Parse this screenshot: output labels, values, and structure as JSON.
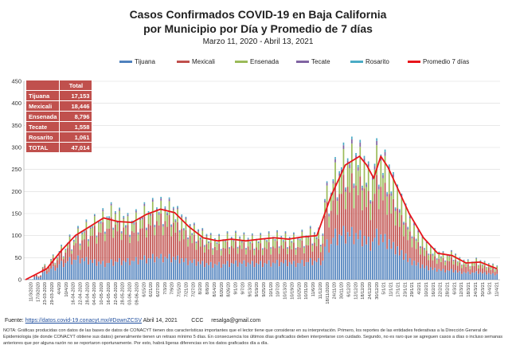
{
  "title_line1": "Casos Confirmados COVID-19 en Baja California",
  "title_line2": "por Municipio por Día y Promedio de 7 días",
  "subtitle": "Marzo 11, 2020  - Abril 13, 2021",
  "legend": [
    {
      "label": "Tijuana",
      "color": "#4f81bd"
    },
    {
      "label": "Mexicali",
      "color": "#c0504d"
    },
    {
      "label": "Ensenada",
      "color": "#9bbb59"
    },
    {
      "label": "Tecate",
      "color": "#8064a2"
    },
    {
      "label": "Rosarito",
      "color": "#4bacc6"
    },
    {
      "label": "Promedio 7 días",
      "color": "#e8151b"
    }
  ],
  "totals": {
    "header": "Total",
    "rows": [
      {
        "label": "Tijuana",
        "value": "17,153"
      },
      {
        "label": "Mexicali",
        "value": "18,446"
      },
      {
        "label": "Ensenada",
        "value": "8,796"
      },
      {
        "label": "Tecate",
        "value": "1,558"
      },
      {
        "label": "Rosarito",
        "value": "1,061"
      },
      {
        "label": "TOTAL",
        "value": "47,014"
      }
    ]
  },
  "source_prefix": "Fuente:",
  "source_link": "https://datos.covid-19.conacyt.mx/#DownZCSV",
  "source_date": "Abril 14, 2021",
  "source_ccc": "CCC",
  "source_email": "resalga@gmail.com",
  "note": "NOTA: Gráficas producidas con datos de las bases de datos de CONACYT tienen dos características importantes que el lector tiene que considerar en su interpretación. Primero, los reportes de las entidades federativas a la Dirección General de Epidemiologia (de donde CONACYT obtiene sus datos) generalmente tienen un retraso mínimo 5 días. En consecuencia los últimos días graficados deben interpretarse con cuidado. Segundo, no es raro que se agreguen casos a días o incluso semanas anteriores que por alguna razón no se reportaron oportunamente. Por esto, habrá ligeras diferencias en los datos graficados día a día.",
  "chart_data": {
    "type": "bar",
    "stacked": true,
    "title": "Casos Confirmados COVID-19 en Baja California por Municipio por Día y Promedio de 7 días",
    "subtitle": "Marzo 11, 2020  - Abril 13, 2021",
    "ylim": [
      0,
      450
    ],
    "yticks": [
      0,
      50,
      100,
      150,
      200,
      250,
      300,
      350,
      400,
      450
    ],
    "grid": true,
    "legend_position": "top",
    "xtick_labels": [
      "11/3/2020",
      "17/3/2020",
      "23-03-2020",
      "29-03-2020",
      "4/4/20",
      "10/4/20",
      "16-04-2020",
      "22-04-2020",
      "28-04-2020",
      "04-05-2020",
      "10-05-2020",
      "16-05-2020",
      "22-05-2020",
      "28-05-2020",
      "03-06-2020",
      "09-06-2020",
      "6/15/20",
      "6/21/20",
      "6/27/20",
      "7/3/20",
      "7/9/20",
      "7/15/20",
      "7/21/20",
      "7/27/20",
      "8/2/20",
      "8/8/20",
      "8/14/20",
      "8/20/20",
      "8/26/20",
      "9/1/20",
      "9/7/20",
      "9/13/20",
      "9/19/20",
      "9/25/20",
      "10/1/20",
      "10/7/20",
      "10/13/20",
      "10/19/20",
      "10/25/20",
      "10/31/20",
      "11/6/20",
      "11/12/20",
      "18/11/2020",
      "24/11/20",
      "30/11/20",
      "6/12/20",
      "12/12/20",
      "18/12/20",
      "24/12/20",
      "30/12/20",
      "5/1/21",
      "11/1/21",
      "17/1/21",
      "23/1/21",
      "29/1/21",
      "4/2/21",
      "10/2/21",
      "16/2/21",
      "22/2/21",
      "28/2/21",
      "6/3/21",
      "12/3/21",
      "18/3/21",
      "24/3/21",
      "30/3/21",
      "5/4/21",
      "11/4/21"
    ],
    "series_names": [
      "Tijuana",
      "Mexicali",
      "Ensenada",
      "Tecate",
      "Rosarito"
    ],
    "series_colors": [
      "#4f81bd",
      "#c0504d",
      "#9bbb59",
      "#8064a2",
      "#4bacc6"
    ],
    "note": "Daily stacked values per municipality estimated by week from the figure",
    "weekly_stacked": [
      {
        "week_of": "11/3/2020",
        "values": [
          1,
          0,
          0,
          0,
          0
        ]
      },
      {
        "week_of": "18/3/2020",
        "values": [
          6,
          3,
          0,
          0,
          0
        ]
      },
      {
        "week_of": "25/3/2020",
        "values": [
          16,
          10,
          2,
          0,
          1
        ]
      },
      {
        "week_of": "1/4/2020",
        "values": [
          25,
          16,
          4,
          1,
          1
        ]
      },
      {
        "week_of": "8/4/2020",
        "values": [
          35,
          22,
          5,
          1,
          2
        ]
      },
      {
        "week_of": "15/4/2020",
        "values": [
          42,
          30,
          8,
          2,
          2
        ]
      },
      {
        "week_of": "22/4/2020",
        "values": [
          45,
          38,
          12,
          2,
          3
        ]
      },
      {
        "week_of": "29/4/2020",
        "values": [
          42,
          50,
          15,
          2,
          3
        ]
      },
      {
        "week_of": "6/5/2020",
        "values": [
          38,
          62,
          18,
          2,
          2
        ]
      },
      {
        "week_of": "13/5/2020",
        "values": [
          35,
          72,
          20,
          3,
          3
        ]
      },
      {
        "week_of": "20/5/2020",
        "values": [
          38,
          78,
          22,
          3,
          3
        ]
      },
      {
        "week_of": "27/5/2020",
        "values": [
          40,
          70,
          18,
          3,
          3
        ]
      },
      {
        "week_of": "3/6/2020",
        "values": [
          40,
          62,
          16,
          3,
          3
        ]
      },
      {
        "week_of": "10/6/2020",
        "values": [
          42,
          65,
          18,
          3,
          3
        ]
      },
      {
        "week_of": "17/6/2020",
        "values": [
          45,
          72,
          20,
          4,
          3
        ]
      },
      {
        "week_of": "24/6/2020",
        "values": [
          48,
          75,
          22,
          4,
          3
        ]
      },
      {
        "week_of": "1/7/2020",
        "values": [
          48,
          75,
          24,
          4,
          3
        ]
      },
      {
        "week_of": "8/7/2020",
        "values": [
          48,
          72,
          26,
          4,
          3
        ]
      },
      {
        "week_of": "15/7/2020",
        "values": [
          45,
          62,
          24,
          3,
          3
        ]
      },
      {
        "week_of": "22/7/2020",
        "values": [
          40,
          52,
          20,
          3,
          2
        ]
      },
      {
        "week_of": "29/7/2020",
        "values": [
          38,
          45,
          18,
          3,
          2
        ]
      },
      {
        "week_of": "5/8/2020",
        "values": [
          35,
          40,
          16,
          3,
          2
        ]
      },
      {
        "week_of": "12/8/2020",
        "values": [
          33,
          36,
          14,
          2,
          2
        ]
      },
      {
        "week_of": "19/8/2020",
        "values": [
          33,
          34,
          14,
          2,
          2
        ]
      },
      {
        "week_of": "26/8/2020",
        "values": [
          35,
          36,
          15,
          2,
          2
        ]
      },
      {
        "week_of": "2/9/2020",
        "values": [
          36,
          36,
          15,
          2,
          2
        ]
      },
      {
        "week_of": "9/9/2020",
        "values": [
          36,
          34,
          14,
          2,
          2
        ]
      },
      {
        "week_of": "16/9/2020",
        "values": [
          35,
          33,
          14,
          2,
          2
        ]
      },
      {
        "week_of": "23/9/2020",
        "values": [
          35,
          33,
          15,
          2,
          2
        ]
      },
      {
        "week_of": "30/9/2020",
        "values": [
          36,
          34,
          16,
          2,
          2
        ]
      },
      {
        "week_of": "7/10/2020",
        "values": [
          37,
          35,
          16,
          2,
          2
        ]
      },
      {
        "week_of": "14/10/2020",
        "values": [
          37,
          34,
          15,
          2,
          2
        ]
      },
      {
        "week_of": "21/10/2020",
        "values": [
          35,
          34,
          15,
          2,
          2
        ]
      },
      {
        "week_of": "28/10/2020",
        "values": [
          37,
          36,
          16,
          2,
          2
        ]
      },
      {
        "week_of": "4/11/2020",
        "values": [
          40,
          38,
          17,
          3,
          2
        ]
      },
      {
        "week_of": "11/11/2020",
        "values": [
          40,
          36,
          16,
          3,
          2
        ]
      },
      {
        "week_of": "18/11/2020",
        "values": [
          75,
          70,
          30,
          5,
          3
        ]
      },
      {
        "week_of": "25/11/2020",
        "values": [
          95,
          85,
          38,
          6,
          4
        ]
      },
      {
        "week_of": "2/12/2020",
        "values": [
          100,
          95,
          48,
          7,
          5
        ]
      },
      {
        "week_of": "9/12/2020",
        "values": [
          98,
          100,
          55,
          8,
          5
        ]
      },
      {
        "week_of": "16/12/2020",
        "values": [
          92,
          100,
          55,
          8,
          5
        ]
      },
      {
        "week_of": "23/12/2020",
        "values": [
          80,
          85,
          45,
          6,
          4
        ]
      },
      {
        "week_of": "30/12/2020",
        "values": [
          95,
          100,
          55,
          8,
          5
        ]
      },
      {
        "week_of": "6/1/2021",
        "values": [
          85,
          95,
          50,
          7,
          5
        ]
      },
      {
        "week_of": "13/1/2021",
        "values": [
          70,
          80,
          40,
          6,
          4
        ]
      },
      {
        "week_of": "20/1/2021",
        "values": [
          55,
          65,
          32,
          5,
          3
        ]
      },
      {
        "week_of": "27/1/2021",
        "values": [
          40,
          50,
          24,
          4,
          2
        ]
      },
      {
        "week_of": "3/2/2021",
        "values": [
          32,
          38,
          18,
          3,
          2
        ]
      },
      {
        "week_of": "10/2/2021",
        "values": [
          26,
          28,
          14,
          2,
          2
        ]
      },
      {
        "week_of": "17/2/2021",
        "values": [
          22,
          22,
          11,
          2,
          2
        ]
      },
      {
        "week_of": "24/2/2021",
        "values": [
          20,
          20,
          10,
          2,
          1
        ]
      },
      {
        "week_of": "3/3/2021",
        "values": [
          20,
          22,
          10,
          2,
          1
        ]
      },
      {
        "week_of": "10/3/2021",
        "values": [
          16,
          16,
          8,
          1,
          1
        ]
      },
      {
        "week_of": "17/3/2021",
        "values": [
          15,
          14,
          7,
          1,
          1
        ]
      },
      {
        "week_of": "24/3/2021",
        "values": [
          16,
          15,
          8,
          1,
          1
        ]
      },
      {
        "week_of": "31/3/2021",
        "values": [
          14,
          12,
          7,
          1,
          1
        ]
      },
      {
        "week_of": "7/4/2021",
        "values": [
          12,
          10,
          6,
          1,
          1
        ]
      }
    ],
    "moving_avg_7d": [
      {
        "date": "11/3/2020",
        "value": 0
      },
      {
        "date": "29/3/2020",
        "value": 25
      },
      {
        "date": "10/4/2020",
        "value": 65
      },
      {
        "date": "22/4/2020",
        "value": 100
      },
      {
        "date": "4/5/2020",
        "value": 120
      },
      {
        "date": "16/5/2020",
        "value": 140
      },
      {
        "date": "28/5/2020",
        "value": 132
      },
      {
        "date": "9/6/2020",
        "value": 130
      },
      {
        "date": "21/6/2020",
        "value": 148
      },
      {
        "date": "3/7/2020",
        "value": 160
      },
      {
        "date": "15/7/2020",
        "value": 152
      },
      {
        "date": "27/7/2020",
        "value": 120
      },
      {
        "date": "8/8/2020",
        "value": 95
      },
      {
        "date": "20/8/2020",
        "value": 88
      },
      {
        "date": "1/9/2020",
        "value": 92
      },
      {
        "date": "13/9/2020",
        "value": 88
      },
      {
        "date": "25/9/2020",
        "value": 92
      },
      {
        "date": "7/10/2020",
        "value": 95
      },
      {
        "date": "19/10/2020",
        "value": 92
      },
      {
        "date": "31/10/2020",
        "value": 97
      },
      {
        "date": "12/11/2020",
        "value": 100
      },
      {
        "date": "24/11/2020",
        "value": 190
      },
      {
        "date": "6/12/2020",
        "value": 260
      },
      {
        "date": "18/12/2020",
        "value": 280
      },
      {
        "date": "24/12/2020",
        "value": 260
      },
      {
        "date": "30/12/2020",
        "value": 230
      },
      {
        "date": "5/1/2021",
        "value": 280
      },
      {
        "date": "11/1/2021",
        "value": 255
      },
      {
        "date": "17/1/2021",
        "value": 220
      },
      {
        "date": "29/1/2021",
        "value": 150
      },
      {
        "date": "10/2/2021",
        "value": 95
      },
      {
        "date": "22/2/2021",
        "value": 60
      },
      {
        "date": "6/3/2021",
        "value": 55
      },
      {
        "date": "18/3/2021",
        "value": 38
      },
      {
        "date": "30/3/2021",
        "value": 40
      },
      {
        "date": "13/4/2021",
        "value": 25
      }
    ]
  }
}
